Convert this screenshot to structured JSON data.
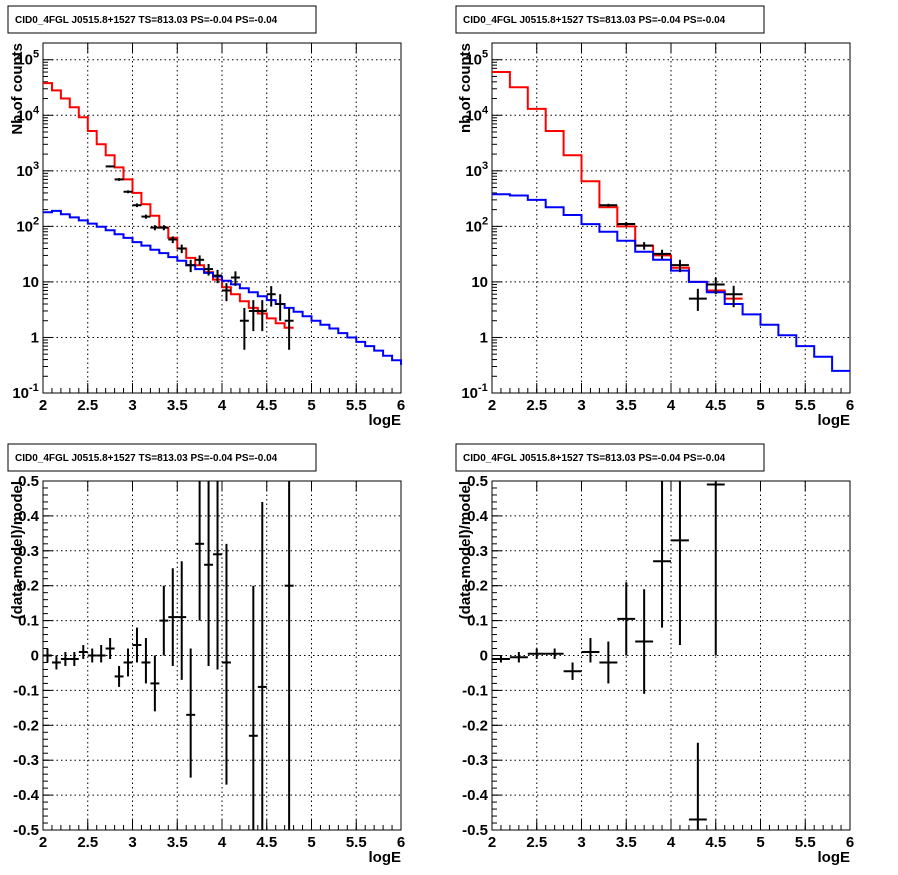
{
  "chart_data": [
    {
      "type": "line",
      "title": "CID0_4FGL J0515.8+1527 TS=813.03 PS=-0.04 PS=-0.04",
      "xlabel": "logE",
      "ylabel": "Nb of counts",
      "xlim": [
        2,
        6
      ],
      "ylim": [
        0.1,
        200000
      ],
      "yscale": "log",
      "grid": true,
      "xticks": [
        "2",
        "2.5",
        "3",
        "3.5",
        "4",
        "4.5",
        "5",
        "5.5",
        "6"
      ],
      "yticks": [
        {
          "value": 0.1,
          "base": "10",
          "exp": "-1"
        },
        {
          "value": 1,
          "base": "1",
          "exp": ""
        },
        {
          "value": 10,
          "base": "10",
          "exp": ""
        },
        {
          "value": 100,
          "base": "10",
          "exp": "2"
        },
        {
          "value": 1000,
          "base": "10",
          "exp": "3"
        },
        {
          "value": 10000,
          "base": "10",
          "exp": "4"
        },
        {
          "value": 100000,
          "base": "10",
          "exp": "5"
        }
      ],
      "series": [
        {
          "color": "#ff0000",
          "bin_edges": [
            2.0,
            2.1,
            2.2,
            2.3,
            2.4,
            2.5,
            2.6,
            2.7,
            2.8,
            2.9,
            3.0,
            3.1,
            3.2,
            3.3,
            3.4,
            3.5,
            3.6,
            3.7,
            3.8,
            3.9,
            4.0,
            4.1,
            4.2,
            4.3,
            4.4,
            4.5,
            4.6,
            4.7,
            4.8
          ],
          "values": [
            38000,
            28000,
            20000,
            14000,
            9200,
            5200,
            3000,
            1900,
            1150,
            700,
            400,
            250,
            155,
            95,
            62,
            40,
            27,
            20,
            15,
            11,
            8,
            6,
            4.5,
            3.4,
            2.7,
            2.2,
            1.8,
            1.5
          ]
        },
        {
          "color": "#0000ff",
          "bin_edges": [
            2.0,
            2.1,
            2.2,
            2.3,
            2.4,
            2.5,
            2.6,
            2.7,
            2.8,
            2.9,
            3.0,
            3.1,
            3.2,
            3.3,
            3.4,
            3.5,
            3.6,
            3.7,
            3.8,
            3.9,
            4.0,
            4.1,
            4.2,
            4.3,
            4.4,
            4.5,
            4.6,
            4.7,
            4.8,
            4.9,
            5.0,
            5.1,
            5.2,
            5.3,
            5.4,
            5.5,
            5.6,
            5.7,
            5.8,
            5.9,
            6.0
          ],
          "values": [
            180,
            190,
            165,
            145,
            128,
            112,
            98,
            85,
            72,
            62,
            52,
            45,
            38,
            33,
            28,
            24,
            20,
            17,
            14.5,
            12.5,
            10.5,
            9,
            7.7,
            6.5,
            5.5,
            4.7,
            4,
            3.4,
            2.9,
            2.4,
            2.0,
            1.7,
            1.45,
            1.2,
            1.0,
            0.83,
            0.7,
            0.58,
            0.47,
            0.39,
            0.32
          ]
        }
      ],
      "points": [
        {
          "x": 2.75,
          "y": 1200,
          "xerr": 0.05,
          "ylo": 1150,
          "yhi": 1250
        },
        {
          "x": 2.85,
          "y": 700,
          "xerr": 0.05,
          "ylo": 660,
          "yhi": 740
        },
        {
          "x": 2.95,
          "y": 420,
          "xerr": 0.05,
          "ylo": 395,
          "yhi": 445
        },
        {
          "x": 3.05,
          "y": 240,
          "xerr": 0.05,
          "ylo": 222,
          "yhi": 258
        },
        {
          "x": 3.15,
          "y": 150,
          "xerr": 0.05,
          "ylo": 137,
          "yhi": 163
        },
        {
          "x": 3.25,
          "y": 95,
          "xerr": 0.05,
          "ylo": 85,
          "yhi": 105
        },
        {
          "x": 3.35,
          "y": 95,
          "xerr": 0.05,
          "ylo": 85,
          "yhi": 105
        },
        {
          "x": 3.45,
          "y": 58,
          "xerr": 0.05,
          "ylo": 50,
          "yhi": 66
        },
        {
          "x": 3.55,
          "y": 40,
          "xerr": 0.05,
          "ylo": 33,
          "yhi": 47
        },
        {
          "x": 3.65,
          "y": 20,
          "xerr": 0.05,
          "ylo": 15,
          "yhi": 25
        },
        {
          "x": 3.75,
          "y": 25,
          "xerr": 0.05,
          "ylo": 20,
          "yhi": 30
        },
        {
          "x": 3.85,
          "y": 17,
          "xerr": 0.05,
          "ylo": 13,
          "yhi": 21
        },
        {
          "x": 3.95,
          "y": 13,
          "xerr": 0.05,
          "ylo": 9.5,
          "yhi": 16.5
        },
        {
          "x": 4.05,
          "y": 7,
          "xerr": 0.05,
          "ylo": 4.5,
          "yhi": 9.5
        },
        {
          "x": 4.15,
          "y": 12,
          "xerr": 0.05,
          "ylo": 8.5,
          "yhi": 15.5
        },
        {
          "x": 4.25,
          "y": 2,
          "xerr": 0.05,
          "ylo": 0.6,
          "yhi": 3.4
        },
        {
          "x": 4.35,
          "y": 3,
          "xerr": 0.05,
          "ylo": 1.3,
          "yhi": 4.7
        },
        {
          "x": 4.45,
          "y": 3,
          "xerr": 0.05,
          "ylo": 1.3,
          "yhi": 4.7
        },
        {
          "x": 4.55,
          "y": 6,
          "xerr": 0.05,
          "ylo": 3.6,
          "yhi": 8.4
        },
        {
          "x": 4.65,
          "y": 4,
          "xerr": 0.05,
          "ylo": 2,
          "yhi": 6
        },
        {
          "x": 4.75,
          "y": 2,
          "xerr": 0.05,
          "ylo": 0.6,
          "yhi": 3.4
        }
      ]
    },
    {
      "type": "line",
      "title": "CID0_4FGL J0515.8+1527 TS=813.03 PS=-0.04 PS=-0.04",
      "xlabel": "logE",
      "ylabel": "nb of counts",
      "xlim": [
        2,
        6
      ],
      "ylim": [
        0.1,
        200000
      ],
      "yscale": "log",
      "grid": true,
      "xticks": [
        "2",
        "2.5",
        "3",
        "3.5",
        "4",
        "4.5",
        "5",
        "5.5",
        "6"
      ],
      "yticks": [
        {
          "value": 0.1,
          "base": "10",
          "exp": "-1"
        },
        {
          "value": 1,
          "base": "1",
          "exp": ""
        },
        {
          "value": 10,
          "base": "10",
          "exp": ""
        },
        {
          "value": 100,
          "base": "10",
          "exp": "2"
        },
        {
          "value": 1000,
          "base": "10",
          "exp": "3"
        },
        {
          "value": 10000,
          "base": "10",
          "exp": "4"
        },
        {
          "value": 100000,
          "base": "10",
          "exp": "5"
        }
      ],
      "series": [
        {
          "color": "#ff0000",
          "bin_edges": [
            2.0,
            2.2,
            2.4,
            2.6,
            2.8,
            3.0,
            3.2,
            3.4,
            3.6,
            3.8,
            4.0,
            4.2,
            4.4,
            4.6,
            4.8
          ],
          "values": [
            60000,
            32000,
            13000,
            5200,
            1900,
            650,
            220,
            100,
            45,
            30,
            18,
            10,
            7,
            5
          ]
        },
        {
          "color": "#0000ff",
          "bin_edges": [
            2.0,
            2.2,
            2.4,
            2.6,
            2.8,
            3.0,
            3.2,
            3.4,
            3.6,
            3.8,
            4.0,
            4.2,
            4.4,
            4.6,
            4.8,
            5.0,
            5.2,
            5.4,
            5.6,
            5.8,
            6.0
          ],
          "values": [
            380,
            360,
            300,
            220,
            160,
            110,
            80,
            55,
            35,
            25,
            16,
            10,
            6.5,
            4,
            2.6,
            1.7,
            1.1,
            0.7,
            0.45,
            0.25
          ]
        }
      ],
      "points": [
        {
          "x": 3.3,
          "y": 240,
          "xerr": 0.1,
          "ylo": 225,
          "yhi": 255
        },
        {
          "x": 3.5,
          "y": 110,
          "xerr": 0.1,
          "ylo": 100,
          "yhi": 120
        },
        {
          "x": 3.7,
          "y": 45,
          "xerr": 0.1,
          "ylo": 38,
          "yhi": 52
        },
        {
          "x": 3.9,
          "y": 32,
          "xerr": 0.1,
          "ylo": 26,
          "yhi": 38
        },
        {
          "x": 4.1,
          "y": 20,
          "xerr": 0.1,
          "ylo": 15,
          "yhi": 25
        },
        {
          "x": 4.3,
          "y": 5,
          "xerr": 0.1,
          "ylo": 3,
          "yhi": 7.5
        },
        {
          "x": 4.5,
          "y": 9,
          "xerr": 0.1,
          "ylo": 6,
          "yhi": 12
        },
        {
          "x": 4.7,
          "y": 6,
          "xerr": 0.1,
          "ylo": 3.5,
          "yhi": 8.5
        }
      ]
    },
    {
      "type": "scatter",
      "title": "CID0_4FGL J0515.8+1527 TS=813.03 PS=-0.04 PS=-0.04",
      "xlabel": "logE",
      "ylabel": "(data-model)/model",
      "xlim": [
        2,
        6
      ],
      "ylim": [
        -0.5,
        0.5
      ],
      "yscale": "linear",
      "grid": true,
      "xticks": [
        "2",
        "2.5",
        "3",
        "3.5",
        "4",
        "4.5",
        "5",
        "5.5",
        "6"
      ],
      "yticks": [
        "-0.5",
        "-0.4",
        "-0.3",
        "-0.2",
        "-0.1",
        "0",
        "0.1",
        "0.2",
        "0.3",
        "0.4",
        "0.5"
      ],
      "points": [
        {
          "x": 2.05,
          "y": 0.0,
          "xerr": 0.05,
          "ylo": -0.02,
          "yhi": 0.02
        },
        {
          "x": 2.15,
          "y": -0.02,
          "xerr": 0.05,
          "ylo": -0.04,
          "yhi": 0.0
        },
        {
          "x": 2.25,
          "y": -0.01,
          "xerr": 0.05,
          "ylo": -0.03,
          "yhi": 0.01
        },
        {
          "x": 2.35,
          "y": -0.01,
          "xerr": 0.05,
          "ylo": -0.03,
          "yhi": 0.01
        },
        {
          "x": 2.45,
          "y": 0.01,
          "xerr": 0.05,
          "ylo": -0.01,
          "yhi": 0.03
        },
        {
          "x": 2.55,
          "y": 0.0,
          "xerr": 0.05,
          "ylo": -0.02,
          "yhi": 0.02
        },
        {
          "x": 2.65,
          "y": 0.0,
          "xerr": 0.05,
          "ylo": -0.02,
          "yhi": 0.03
        },
        {
          "x": 2.75,
          "y": 0.02,
          "xerr": 0.05,
          "ylo": -0.01,
          "yhi": 0.05
        },
        {
          "x": 2.85,
          "y": -0.06,
          "xerr": 0.05,
          "ylo": -0.09,
          "yhi": -0.03
        },
        {
          "x": 2.95,
          "y": -0.02,
          "xerr": 0.05,
          "ylo": -0.06,
          "yhi": 0.02
        },
        {
          "x": 3.05,
          "y": 0.03,
          "xerr": 0.05,
          "ylo": -0.02,
          "yhi": 0.08
        },
        {
          "x": 3.15,
          "y": -0.02,
          "xerr": 0.05,
          "ylo": -0.08,
          "yhi": 0.05
        },
        {
          "x": 3.25,
          "y": -0.08,
          "xerr": 0.05,
          "ylo": -0.16,
          "yhi": 0.0
        },
        {
          "x": 3.35,
          "y": 0.1,
          "xerr": 0.05,
          "ylo": 0.0,
          "yhi": 0.2
        },
        {
          "x": 3.45,
          "y": 0.11,
          "xerr": 0.05,
          "ylo": -0.03,
          "yhi": 0.25
        },
        {
          "x": 3.55,
          "y": 0.11,
          "xerr": 0.05,
          "ylo": -0.07,
          "yhi": 0.27
        },
        {
          "x": 3.65,
          "y": -0.17,
          "xerr": 0.05,
          "ylo": -0.35,
          "yhi": 0.02
        },
        {
          "x": 3.75,
          "y": 0.32,
          "xerr": 0.05,
          "ylo": 0.1,
          "yhi": 0.5
        },
        {
          "x": 3.85,
          "y": 0.26,
          "xerr": 0.05,
          "ylo": -0.03,
          "yhi": 0.5
        },
        {
          "x": 3.95,
          "y": 0.29,
          "xerr": 0.05,
          "ylo": -0.04,
          "yhi": 0.5
        },
        {
          "x": 4.05,
          "y": -0.02,
          "xerr": 0.05,
          "ylo": -0.37,
          "yhi": 0.32
        },
        {
          "x": 4.35,
          "y": -0.23,
          "xerr": 0.05,
          "ylo": -0.5,
          "yhi": 0.2
        },
        {
          "x": 4.45,
          "y": -0.09,
          "xerr": 0.05,
          "ylo": -0.5,
          "yhi": 0.44
        },
        {
          "x": 4.75,
          "y": 0.2,
          "xerr": 0.05,
          "ylo": -0.5,
          "yhi": 0.5
        }
      ]
    },
    {
      "type": "scatter",
      "title": "CID0_4FGL J0515.8+1527 TS=813.03 PS=-0.04 PS=-0.04",
      "xlabel": "logE",
      "ylabel": "(data-model)/model",
      "xlim": [
        2,
        6
      ],
      "ylim": [
        -0.5,
        0.5
      ],
      "yscale": "linear",
      "grid": true,
      "xticks": [
        "2",
        "2.5",
        "3",
        "3.5",
        "4",
        "4.5",
        "5",
        "5.5",
        "6"
      ],
      "yticks": [
        "-0.5",
        "-0.4",
        "-0.3",
        "-0.2",
        "-0.1",
        "0",
        "0.1",
        "0.2",
        "0.3",
        "0.4",
        "0.5"
      ],
      "points": [
        {
          "x": 2.1,
          "y": -0.01,
          "xerr": 0.1,
          "ylo": -0.02,
          "yhi": 0.0
        },
        {
          "x": 2.3,
          "y": -0.005,
          "xerr": 0.1,
          "ylo": -0.02,
          "yhi": 0.01
        },
        {
          "x": 2.5,
          "y": 0.005,
          "xerr": 0.1,
          "ylo": -0.01,
          "yhi": 0.02
        },
        {
          "x": 2.7,
          "y": 0.005,
          "xerr": 0.1,
          "ylo": -0.01,
          "yhi": 0.02
        },
        {
          "x": 2.9,
          "y": -0.045,
          "xerr": 0.1,
          "ylo": -0.07,
          "yhi": -0.02
        },
        {
          "x": 3.1,
          "y": 0.01,
          "xerr": 0.1,
          "ylo": -0.02,
          "yhi": 0.05
        },
        {
          "x": 3.3,
          "y": -0.02,
          "xerr": 0.1,
          "ylo": -0.08,
          "yhi": 0.04
        },
        {
          "x": 3.5,
          "y": 0.105,
          "xerr": 0.1,
          "ylo": 0.0,
          "yhi": 0.21
        },
        {
          "x": 3.7,
          "y": 0.04,
          "xerr": 0.1,
          "ylo": -0.11,
          "yhi": 0.19
        },
        {
          "x": 3.9,
          "y": 0.27,
          "xerr": 0.1,
          "ylo": 0.08,
          "yhi": 0.5
        },
        {
          "x": 4.1,
          "y": 0.33,
          "xerr": 0.1,
          "ylo": 0.03,
          "yhi": 0.5
        },
        {
          "x": 4.3,
          "y": -0.47,
          "xerr": 0.1,
          "ylo": -0.5,
          "yhi": -0.25
        },
        {
          "x": 4.5,
          "y": 0.49,
          "xerr": 0.1,
          "ylo": 0.0,
          "yhi": 0.5
        }
      ]
    }
  ]
}
